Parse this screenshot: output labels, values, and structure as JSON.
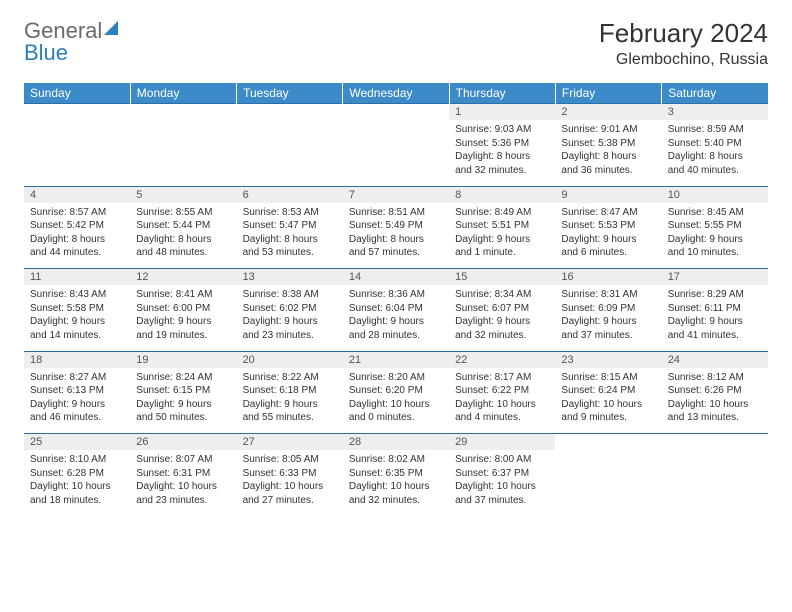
{
  "logo": {
    "part1": "General",
    "part2": "Blue"
  },
  "title": "February 2024",
  "location": "Glembochino, Russia",
  "colors": {
    "header_bg": "#3c8bc8",
    "header_text": "#ffffff",
    "daynum_bg": "#eeeeee",
    "border": "#2a6fa8",
    "text": "#333333",
    "logo_gray": "#6a6a6a",
    "logo_blue": "#2a7fbf"
  },
  "weekdays": [
    "Sunday",
    "Monday",
    "Tuesday",
    "Wednesday",
    "Thursday",
    "Friday",
    "Saturday"
  ],
  "weeks": [
    [
      null,
      null,
      null,
      null,
      {
        "n": "1",
        "sr": "Sunrise: 9:03 AM",
        "ss": "Sunset: 5:36 PM",
        "dl": "Daylight: 8 hours and 32 minutes."
      },
      {
        "n": "2",
        "sr": "Sunrise: 9:01 AM",
        "ss": "Sunset: 5:38 PM",
        "dl": "Daylight: 8 hours and 36 minutes."
      },
      {
        "n": "3",
        "sr": "Sunrise: 8:59 AM",
        "ss": "Sunset: 5:40 PM",
        "dl": "Daylight: 8 hours and 40 minutes."
      }
    ],
    [
      {
        "n": "4",
        "sr": "Sunrise: 8:57 AM",
        "ss": "Sunset: 5:42 PM",
        "dl": "Daylight: 8 hours and 44 minutes."
      },
      {
        "n": "5",
        "sr": "Sunrise: 8:55 AM",
        "ss": "Sunset: 5:44 PM",
        "dl": "Daylight: 8 hours and 48 minutes."
      },
      {
        "n": "6",
        "sr": "Sunrise: 8:53 AM",
        "ss": "Sunset: 5:47 PM",
        "dl": "Daylight: 8 hours and 53 minutes."
      },
      {
        "n": "7",
        "sr": "Sunrise: 8:51 AM",
        "ss": "Sunset: 5:49 PM",
        "dl": "Daylight: 8 hours and 57 minutes."
      },
      {
        "n": "8",
        "sr": "Sunrise: 8:49 AM",
        "ss": "Sunset: 5:51 PM",
        "dl": "Daylight: 9 hours and 1 minute."
      },
      {
        "n": "9",
        "sr": "Sunrise: 8:47 AM",
        "ss": "Sunset: 5:53 PM",
        "dl": "Daylight: 9 hours and 6 minutes."
      },
      {
        "n": "10",
        "sr": "Sunrise: 8:45 AM",
        "ss": "Sunset: 5:55 PM",
        "dl": "Daylight: 9 hours and 10 minutes."
      }
    ],
    [
      {
        "n": "11",
        "sr": "Sunrise: 8:43 AM",
        "ss": "Sunset: 5:58 PM",
        "dl": "Daylight: 9 hours and 14 minutes."
      },
      {
        "n": "12",
        "sr": "Sunrise: 8:41 AM",
        "ss": "Sunset: 6:00 PM",
        "dl": "Daylight: 9 hours and 19 minutes."
      },
      {
        "n": "13",
        "sr": "Sunrise: 8:38 AM",
        "ss": "Sunset: 6:02 PM",
        "dl": "Daylight: 9 hours and 23 minutes."
      },
      {
        "n": "14",
        "sr": "Sunrise: 8:36 AM",
        "ss": "Sunset: 6:04 PM",
        "dl": "Daylight: 9 hours and 28 minutes."
      },
      {
        "n": "15",
        "sr": "Sunrise: 8:34 AM",
        "ss": "Sunset: 6:07 PM",
        "dl": "Daylight: 9 hours and 32 minutes."
      },
      {
        "n": "16",
        "sr": "Sunrise: 8:31 AM",
        "ss": "Sunset: 6:09 PM",
        "dl": "Daylight: 9 hours and 37 minutes."
      },
      {
        "n": "17",
        "sr": "Sunrise: 8:29 AM",
        "ss": "Sunset: 6:11 PM",
        "dl": "Daylight: 9 hours and 41 minutes."
      }
    ],
    [
      {
        "n": "18",
        "sr": "Sunrise: 8:27 AM",
        "ss": "Sunset: 6:13 PM",
        "dl": "Daylight: 9 hours and 46 minutes."
      },
      {
        "n": "19",
        "sr": "Sunrise: 8:24 AM",
        "ss": "Sunset: 6:15 PM",
        "dl": "Daylight: 9 hours and 50 minutes."
      },
      {
        "n": "20",
        "sr": "Sunrise: 8:22 AM",
        "ss": "Sunset: 6:18 PM",
        "dl": "Daylight: 9 hours and 55 minutes."
      },
      {
        "n": "21",
        "sr": "Sunrise: 8:20 AM",
        "ss": "Sunset: 6:20 PM",
        "dl": "Daylight: 10 hours and 0 minutes."
      },
      {
        "n": "22",
        "sr": "Sunrise: 8:17 AM",
        "ss": "Sunset: 6:22 PM",
        "dl": "Daylight: 10 hours and 4 minutes."
      },
      {
        "n": "23",
        "sr": "Sunrise: 8:15 AM",
        "ss": "Sunset: 6:24 PM",
        "dl": "Daylight: 10 hours and 9 minutes."
      },
      {
        "n": "24",
        "sr": "Sunrise: 8:12 AM",
        "ss": "Sunset: 6:26 PM",
        "dl": "Daylight: 10 hours and 13 minutes."
      }
    ],
    [
      {
        "n": "25",
        "sr": "Sunrise: 8:10 AM",
        "ss": "Sunset: 6:28 PM",
        "dl": "Daylight: 10 hours and 18 minutes."
      },
      {
        "n": "26",
        "sr": "Sunrise: 8:07 AM",
        "ss": "Sunset: 6:31 PM",
        "dl": "Daylight: 10 hours and 23 minutes."
      },
      {
        "n": "27",
        "sr": "Sunrise: 8:05 AM",
        "ss": "Sunset: 6:33 PM",
        "dl": "Daylight: 10 hours and 27 minutes."
      },
      {
        "n": "28",
        "sr": "Sunrise: 8:02 AM",
        "ss": "Sunset: 6:35 PM",
        "dl": "Daylight: 10 hours and 32 minutes."
      },
      {
        "n": "29",
        "sr": "Sunrise: 8:00 AM",
        "ss": "Sunset: 6:37 PM",
        "dl": "Daylight: 10 hours and 37 minutes."
      },
      null,
      null
    ]
  ]
}
